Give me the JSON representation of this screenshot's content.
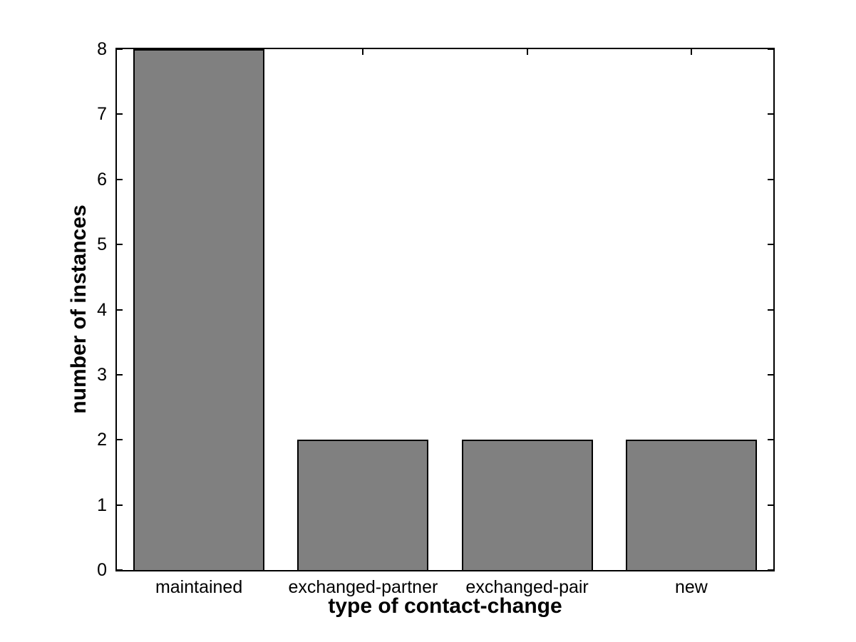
{
  "chart_data": {
    "type": "bar",
    "categories": [
      "maintained",
      "exchanged-partner",
      "exchanged-pair",
      "new"
    ],
    "values": [
      8,
      2,
      2,
      2
    ],
    "title": "",
    "xlabel": "type of contact-change",
    "ylabel": "number of instances",
    "ylim": [
      0,
      8
    ],
    "yticks": [
      0,
      1,
      2,
      3,
      4,
      5,
      6,
      7,
      8
    ],
    "bar_width_fraction": 0.8,
    "grid": false,
    "legend": "none",
    "colors": {
      "bar_fill": "#808080",
      "bar_edge": "#000000",
      "axis": "#000000",
      "text": "#000000",
      "background": "#ffffff"
    }
  }
}
